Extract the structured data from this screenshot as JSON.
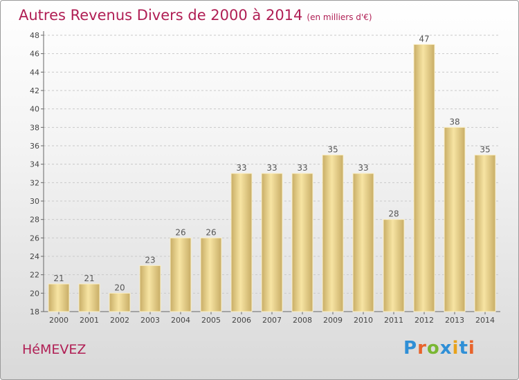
{
  "title": "Autres Revenus Divers de 2000 à 2014",
  "subtitle": "(en milliers d'€)",
  "commune": "HéMEVEZ",
  "logo": {
    "letters": [
      "P",
      "r",
      "o",
      "x",
      "i",
      "t",
      "i"
    ],
    "colors": [
      "#2f8fd6",
      "#e8632b",
      "#7ab733",
      "#2f8fd6",
      "#e8a21b",
      "#2f8fd6",
      "#e8632b"
    ]
  },
  "colors": {
    "title": "#b01e54",
    "bar_light": "#f7e4a3",
    "bar_dark": "#c8ad66"
  },
  "chart_data": {
    "type": "bar",
    "categories": [
      "2000",
      "2001",
      "2002",
      "2003",
      "2004",
      "2005",
      "2006",
      "2007",
      "2008",
      "2009",
      "2010",
      "2011",
      "2012",
      "2013",
      "2014"
    ],
    "values": [
      21,
      21,
      20,
      23,
      26,
      26,
      33,
      33,
      33,
      35,
      33,
      28,
      47,
      38,
      35
    ],
    "ylim": [
      18,
      48
    ],
    "yticks": [
      18,
      20,
      22,
      24,
      26,
      28,
      30,
      32,
      34,
      36,
      38,
      40,
      42,
      44,
      46,
      48
    ],
    "grid": "horizontal dashed",
    "show_data_labels": true
  }
}
